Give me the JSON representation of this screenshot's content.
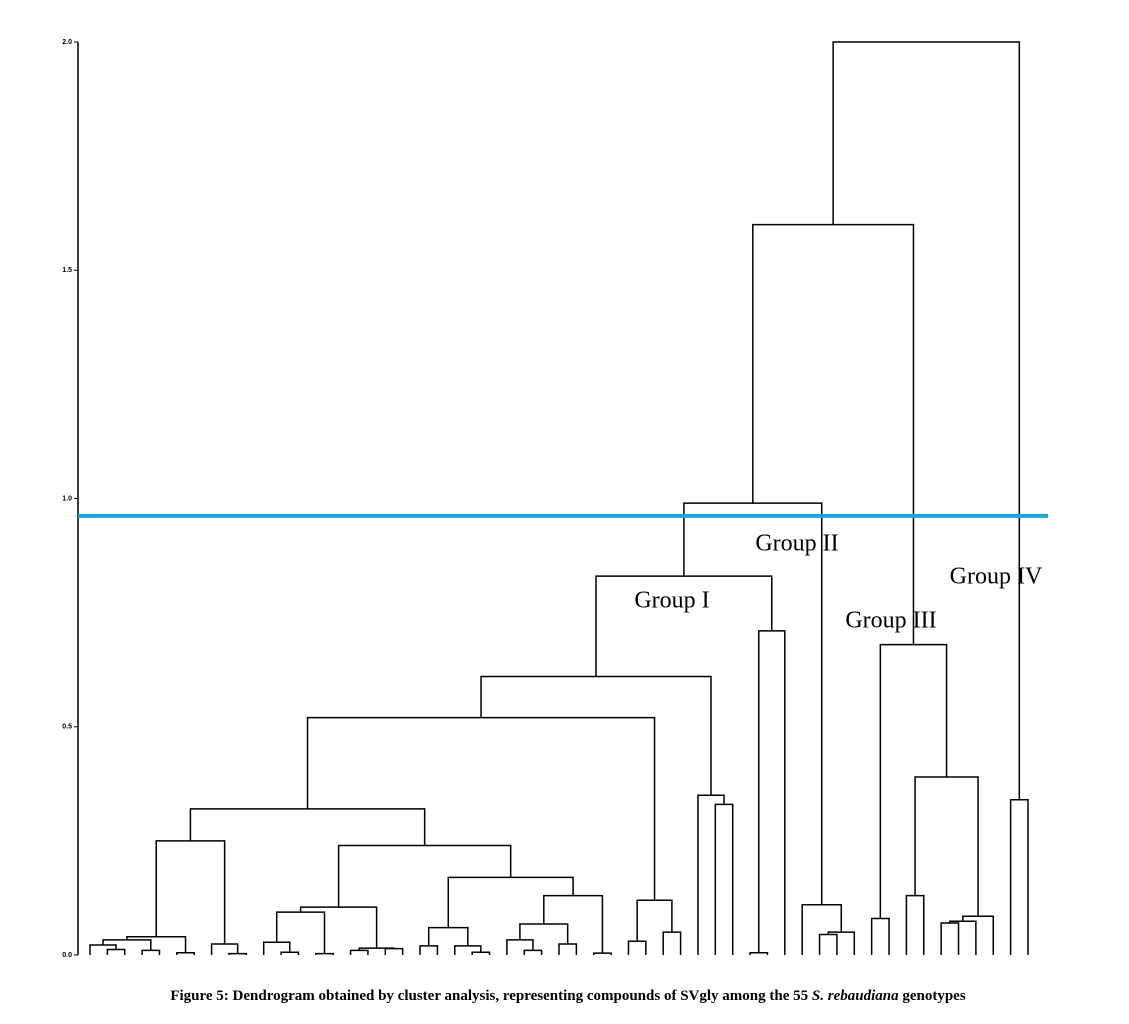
{
  "chart_data": {
    "type": "dendrogram",
    "ylim": [
      0,
      2
    ],
    "yticks": [
      {
        "value": 0,
        "label": "0.0"
      },
      {
        "value": 0.5,
        "label": "0.5"
      },
      {
        "value": 1,
        "label": "1.0"
      },
      {
        "value": 1.5,
        "label": "1.5"
      },
      {
        "value": 2,
        "label": "2.0"
      }
    ],
    "color": "#000000",
    "cut_height": 0.962,
    "cut_color": "#1aa3dc",
    "annotations": [
      "Group I",
      "Group II",
      "Group III",
      "Group IV"
    ],
    "caption": {
      "start": "Figure 5: Dendrogram obtained by cluster analysis, representing compounds of SVgly among the 55 ",
      "italic": "S. rebaudiana",
      "end": " genotypes"
    },
    "tree": {
      "h": 2.0,
      "c": [
        {
          "h": 1.6,
          "c": [
            {
              "h": 0.99,
              "c": [
                {
                  "h": 0.83,
                  "c": [
                    {
                      "h": 0.61,
                      "c": [
                        {
                          "h": 0.52,
                          "c": [
                            {
                              "h": 0.32,
                              "c": [
                                {
                                  "h": 0.25,
                                  "c": [
                                    {
                                      "h": 0.04,
                                      "c": [
                                        {
                                          "h": 0.033,
                                          "c": [
                                            {
                                              "h": 0.022,
                                              "c": [
                                                null,
                                                {
                                                  "h": 0.012,
                                                  "c": [
                                                    null,
                                                    null
                                                  ]
                                                }
                                              ]
                                            },
                                            {
                                              "h": 0.01,
                                              "c": [
                                                null,
                                                null
                                              ]
                                            }
                                          ]
                                        },
                                        {
                                          "h": 0.005,
                                          "c": [
                                            null,
                                            null
                                          ]
                                        }
                                      ]
                                    },
                                    {
                                      "h": 0.024,
                                      "c": [
                                        null,
                                        {
                                          "h": 0.003,
                                          "c": [
                                            null,
                                            null
                                          ]
                                        }
                                      ]
                                    }
                                  ]
                                },
                                {
                                  "h": 0.24,
                                  "c": [
                                    {
                                      "h": 0.105,
                                      "c": [
                                        {
                                          "h": 0.094,
                                          "c": [
                                            {
                                              "h": 0.028,
                                              "c": [
                                                null,
                                                {
                                                  "h": 0.006,
                                                  "c": [
                                                    null,
                                                    null
                                                  ]
                                                }
                                              ]
                                            },
                                            {
                                              "h": 0.003,
                                              "c": [
                                                null,
                                                null
                                              ]
                                            }
                                          ]
                                        },
                                        {
                                          "h": 0.015,
                                          "c": [
                                            {
                                              "h": 0.01,
                                              "c": [
                                                null,
                                                null
                                              ]
                                            },
                                            {
                                              "h": 0.014,
                                              "c": [
                                                null,
                                                null
                                              ]
                                            }
                                          ]
                                        }
                                      ]
                                    },
                                    {
                                      "h": 0.17,
                                      "c": [
                                        {
                                          "h": 0.06,
                                          "c": [
                                            {
                                              "h": 0.02,
                                              "c": [
                                                null,
                                                null
                                              ]
                                            },
                                            {
                                              "h": 0.02,
                                              "c": [
                                                null,
                                                {
                                                  "h": 0.006,
                                                  "c": [
                                                    null,
                                                    null
                                                  ]
                                                }
                                              ]
                                            }
                                          ]
                                        },
                                        {
                                          "h": 0.13,
                                          "c": [
                                            {
                                              "h": 0.068,
                                              "c": [
                                                {
                                                  "h": 0.033,
                                                  "c": [
                                                    null,
                                                    {
                                                      "h": 0.01,
                                                      "c": [
                                                        null,
                                                        null
                                                      ]
                                                    }
                                                  ]
                                                },
                                                {
                                                  "h": 0.024,
                                                  "c": [
                                                    null,
                                                    null
                                                  ]
                                                }
                                              ]
                                            },
                                            {
                                              "h": 0.004,
                                              "c": [
                                                null,
                                                null
                                              ]
                                            }
                                          ]
                                        }
                                      ]
                                    }
                                  ]
                                }
                              ]
                            },
                            {
                              "h": 0.12,
                              "c": [
                                {
                                  "h": 0.03,
                                  "c": [
                                    null,
                                    null
                                  ]
                                },
                                {
                                  "h": 0.05,
                                  "c": [
                                    null,
                                    null
                                  ]
                                }
                              ]
                            }
                          ]
                        },
                        {
                          "h": 0.35,
                          "c": [
                            null,
                            {
                              "h": 0.33,
                              "c": [
                                null,
                                null
                              ]
                            }
                          ]
                        }
                      ]
                    },
                    {
                      "h": 0.71,
                      "c": [
                        {
                          "h": 0.005,
                          "c": [
                            null,
                            null
                          ]
                        },
                        null
                      ]
                    }
                  ]
                },
                {
                  "h": 0.11,
                  "c": [
                    null,
                    {
                      "h": 0.05,
                      "c": [
                        {
                          "h": 0.045,
                          "c": [
                            null,
                            null
                          ]
                        },
                        null
                      ]
                    }
                  ]
                }
              ]
            },
            {
              "h": 0.68,
              "c": [
                {
                  "h": 0.08,
                  "c": [
                    null,
                    null
                  ]
                },
                {
                  "h": 0.39,
                  "c": [
                    {
                      "h": 0.13,
                      "c": [
                        null,
                        null
                      ]
                    },
                    {
                      "h": 0.085,
                      "c": [
                        {
                          "h": 0.074,
                          "c": [
                            {
                              "h": 0.07,
                              "c": [
                                null,
                                null
                              ]
                            },
                            null
                          ]
                        },
                        null
                      ]
                    }
                  ]
                }
              ]
            }
          ]
        },
        {
          "h": 0.34,
          "c": [
            null,
            null
          ]
        }
      ]
    }
  }
}
